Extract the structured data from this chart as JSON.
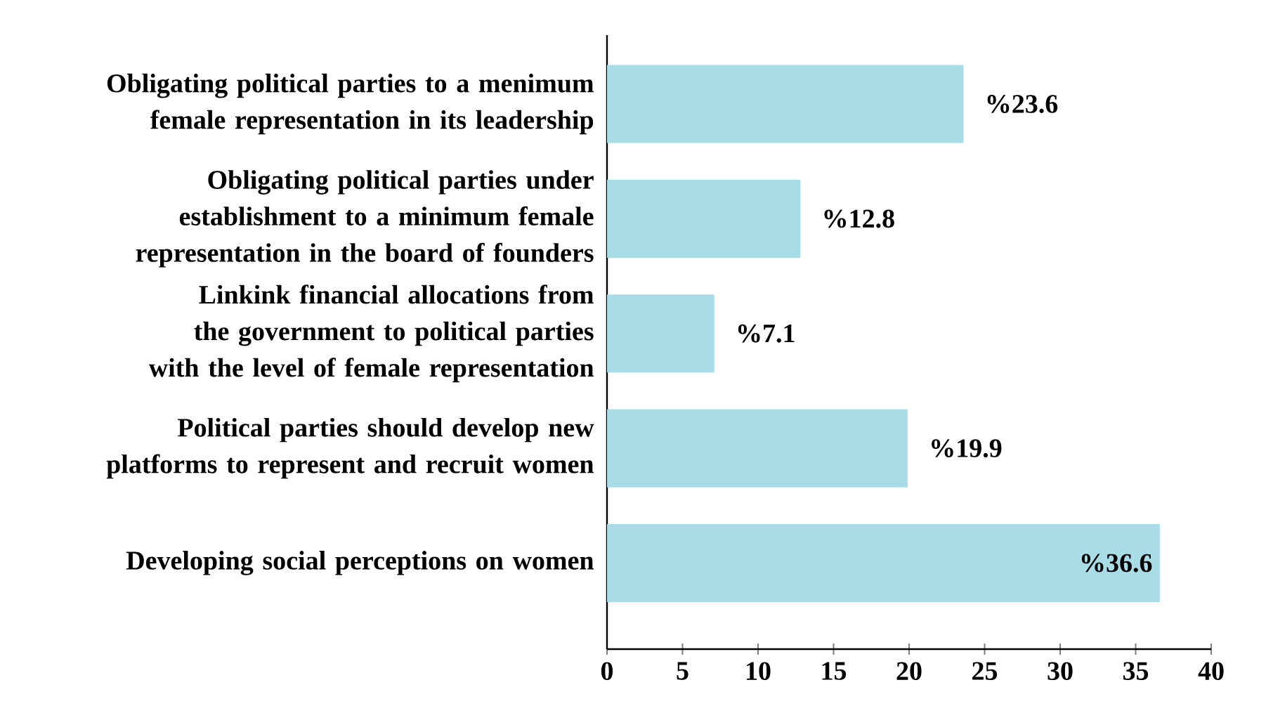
{
  "chart_data": {
    "type": "bar",
    "orientation": "horizontal",
    "categories": [
      "Obligating political parties to a menimum female representation in its leadership",
      "Obligating political parties under establishment to a minimum female representation in the board of founders",
      "Linkink financial allocations from the government to political parties with the level of female representation",
      "Political parties should develop new platforms to represent and recruit women",
      "Developing social perceptions on women"
    ],
    "values": [
      23.6,
      12.8,
      7.1,
      19.9,
      36.6
    ],
    "value_labels": [
      "%23.6",
      "%12.8",
      "%7.1",
      "%19.9",
      "%36.6"
    ],
    "color": "#a8dde8",
    "xlim": [
      0,
      40
    ],
    "xticks": [
      0,
      5,
      10,
      15,
      20,
      25,
      30,
      35,
      40
    ]
  }
}
